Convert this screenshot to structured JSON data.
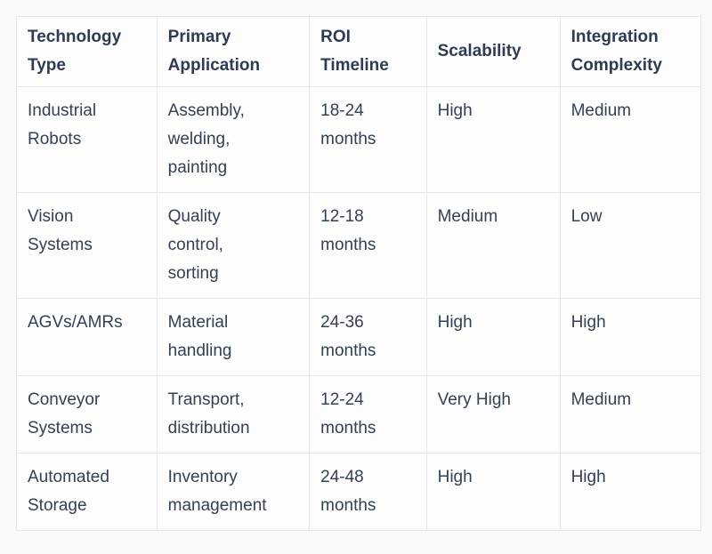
{
  "colors": {
    "page_background": "#fbf9f8",
    "cell_background": "#fdfdfd",
    "border": "#e6e6ea",
    "body_text": "#334155",
    "header_text": "#2e3b52"
  },
  "table": {
    "columns": [
      {
        "id": "technology_type",
        "label": "Technology\nType"
      },
      {
        "id": "primary_application",
        "label": "Primary\nApplication"
      },
      {
        "id": "roi_timeline",
        "label": "ROI\nTimeline"
      },
      {
        "id": "scalability",
        "label": "Scalability"
      },
      {
        "id": "integration_complexity",
        "label": "Integration\nComplexity"
      }
    ],
    "rows": [
      {
        "cells": [
          "Industrial\nRobots",
          "Assembly,\nwelding,\npainting",
          "18-24\nmonths",
          "High",
          "Medium"
        ]
      },
      {
        "cells": [
          "Vision\nSystems",
          "Quality\ncontrol,\nsorting",
          "12-18\nmonths",
          "Medium",
          "Low"
        ]
      },
      {
        "cells": [
          "AGVs/AMRs",
          "Material\nhandling",
          "24-36\nmonths",
          "High",
          "High"
        ]
      },
      {
        "cells": [
          "Conveyor\nSystems",
          "Transport,\ndistribution",
          "12-24\nmonths",
          "Very High",
          "Medium"
        ]
      },
      {
        "cells": [
          "Automated\nStorage",
          "Inventory\nmanagement",
          "24-48\nmonths",
          "High",
          "High"
        ]
      }
    ]
  },
  "chart_data": {
    "type": "table",
    "title": "",
    "columns": [
      "Technology Type",
      "Primary Application",
      "ROI Timeline",
      "Scalability",
      "Integration Complexity"
    ],
    "rows": [
      [
        "Industrial Robots",
        "Assembly, welding, painting",
        "18-24 months",
        "High",
        "Medium"
      ],
      [
        "Vision Systems",
        "Quality control, sorting",
        "12-18 months",
        "Medium",
        "Low"
      ],
      [
        "AGVs/AMRs",
        "Material handling",
        "24-36 months",
        "High",
        "High"
      ],
      [
        "Conveyor Systems",
        "Transport, distribution",
        "12-24 months",
        "Very High",
        "Medium"
      ],
      [
        "Automated Storage",
        "Inventory management",
        "24-48 months",
        "High",
        "High"
      ]
    ]
  }
}
